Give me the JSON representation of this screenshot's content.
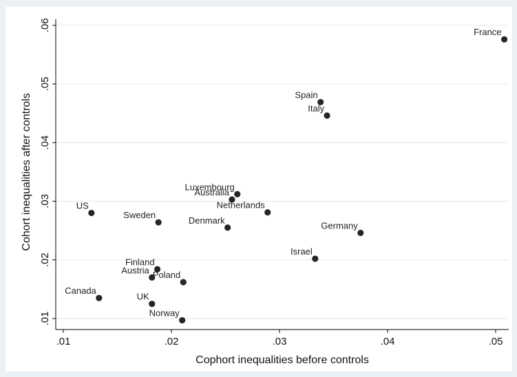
{
  "chart_data": {
    "type": "scatter",
    "xlabel": "Cophort inequalities before controls",
    "ylabel": "Cohort inequalities after controls",
    "xlim": [
      0.01,
      0.051
    ],
    "ylim": [
      0.0095,
      0.061
    ],
    "x_ticks": [
      0.01,
      0.02,
      0.03,
      0.04,
      0.05
    ],
    "x_tick_labels": [
      ".01",
      ".02",
      ".03",
      ".04",
      ".05"
    ],
    "y_ticks": [
      0.01,
      0.02,
      0.03,
      0.04,
      0.05,
      0.06
    ],
    "y_tick_labels": [
      ".01",
      ".02",
      ".03",
      ".04",
      ".05",
      ".06"
    ],
    "grid": true,
    "marker_color": "#262626",
    "points": [
      {
        "label": "France",
        "x": 0.0508,
        "y": 0.0576
      },
      {
        "label": "Spain",
        "x": 0.0338,
        "y": 0.0469
      },
      {
        "label": "Italy",
        "x": 0.0344,
        "y": 0.0446
      },
      {
        "label": "Luxembourg",
        "x": 0.0261,
        "y": 0.0312
      },
      {
        "label": "Australia",
        "x": 0.0256,
        "y": 0.0303
      },
      {
        "label": "Netherlands",
        "x": 0.0289,
        "y": 0.0281
      },
      {
        "label": "US",
        "x": 0.0126,
        "y": 0.028
      },
      {
        "label": "Sweden",
        "x": 0.0188,
        "y": 0.0264
      },
      {
        "label": "Denmark",
        "x": 0.0252,
        "y": 0.0255
      },
      {
        "label": "Germany",
        "x": 0.0375,
        "y": 0.0246
      },
      {
        "label": "Israel",
        "x": 0.0333,
        "y": 0.0202
      },
      {
        "label": "Finland",
        "x": 0.0187,
        "y": 0.0184
      },
      {
        "label": "Austria",
        "x": 0.0182,
        "y": 0.017
      },
      {
        "label": "Poland",
        "x": 0.0211,
        "y": 0.0162
      },
      {
        "label": "Canada",
        "x": 0.0133,
        "y": 0.0135
      },
      {
        "label": "UK",
        "x": 0.0182,
        "y": 0.0125
      },
      {
        "label": "Norway",
        "x": 0.021,
        "y": 0.0097
      }
    ]
  }
}
